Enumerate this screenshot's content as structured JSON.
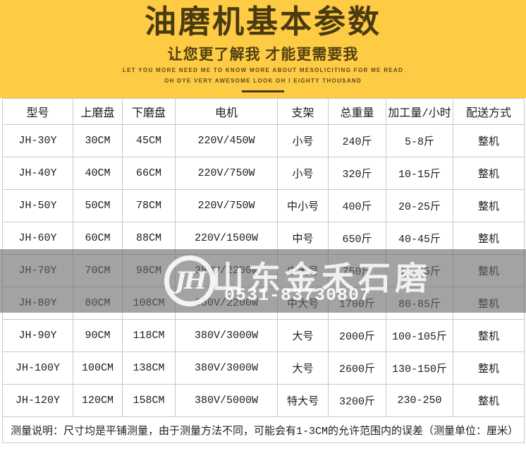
{
  "banner": {
    "title": "油磨机基本参数",
    "subtitle": "让您更了解我 才能更需要我",
    "tagline_line1": "LET YOU MORE NEED ME TO KNOW MORE ABOUT MESOLICITING FOR ME READ",
    "tagline_line2": "OH DYE VERY AWESOME LOOK OH I EIGHTY THOUSAND"
  },
  "table": {
    "headers": [
      "型号",
      "上磨盘",
      "下磨盘",
      "电机",
      "支架",
      "总重量",
      "加工量/小时",
      "配送方式"
    ],
    "rows": [
      [
        "JH-30Y",
        "30CM",
        "45CM",
        "220V/450W",
        "小号",
        "240斤",
        "5-8斤",
        "整机"
      ],
      [
        "JH-40Y",
        "40CM",
        "66CM",
        "220V/750W",
        "小号",
        "320斤",
        "10-15斤",
        "整机"
      ],
      [
        "JH-50Y",
        "50CM",
        "78CM",
        "220V/750W",
        "中小号",
        "400斤",
        "20-25斤",
        "整机"
      ],
      [
        "JH-60Y",
        "60CM",
        "88CM",
        "220V/1500W",
        "中号",
        "650斤",
        "40-45斤",
        "整机"
      ],
      [
        "JH-70Y",
        "70CM",
        "98CM",
        "380V/2200W",
        "中大号",
        "750斤",
        "60-65斤",
        "整机"
      ],
      [
        "JH-80Y",
        "80CM",
        "108CM",
        "380V/2200W",
        "中大号",
        "1700斤",
        "80-85斤",
        "整机"
      ],
      [
        "JH-90Y",
        "90CM",
        "118CM",
        "380V/3000W",
        "大号",
        "2000斤",
        "100-105斤",
        "整机"
      ],
      [
        "JH-100Y",
        "100CM",
        "138CM",
        "380V/3000W",
        "大号",
        "2600斤",
        "130-150斤",
        "整机"
      ],
      [
        "JH-120Y",
        "120CM",
        "158CM",
        "380V/5000W",
        "特大号",
        "3200斤",
        "230-250",
        "整机"
      ]
    ],
    "note": "测量说明：尺寸均是平铺测量，由于测量方法不同，可能会有1-3CM的允许范围内的误差（测量单位：厘米）"
  },
  "watermark": {
    "logo_monogram": "JH",
    "company": "山东金禾石磨",
    "phone": "0531-83730807"
  },
  "colors": {
    "banner_bg": "#fecb45",
    "banner_text": "#4a3a10",
    "table_border": "#c9c9c9",
    "table_text": "#1c1c1c",
    "watermark_overlay_gray": "#666666",
    "watermark_text": "#ffffff"
  }
}
